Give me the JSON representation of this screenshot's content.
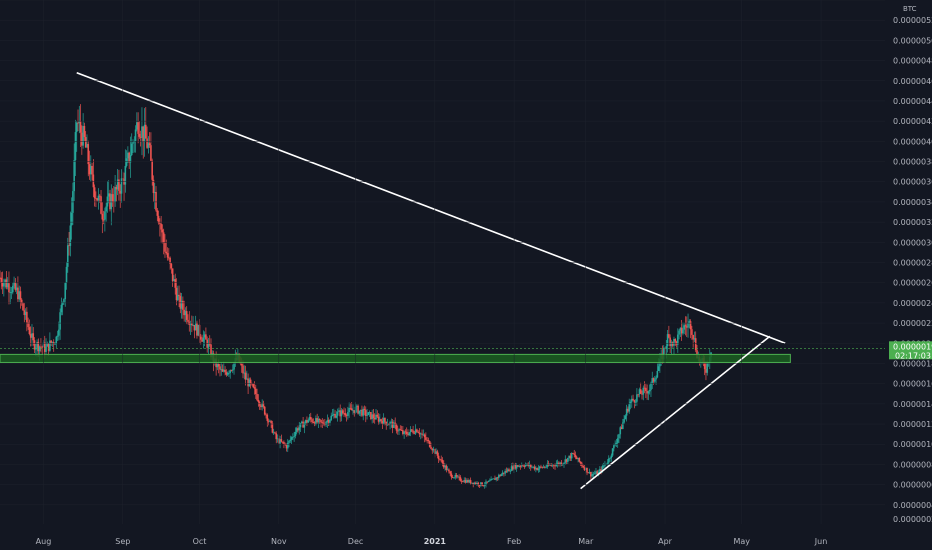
{
  "chart_data": {
    "type": "candlestick",
    "title": "",
    "unit": "BTC",
    "ylim": [
      2.1e-07,
      5.4e-06
    ],
    "y_ticks": [
      "0.00000040",
      "0.00000060",
      "0.00000080",
      "0.00000100",
      "0.00000120",
      "0.00000140",
      "0.00000160",
      "0.00000180",
      "0.00000200",
      "0.00000220",
      "0.00000240",
      "0.00000260",
      "0.00000280",
      "0.00000300",
      "0.00000320",
      "0.00000340",
      "0.00000360",
      "0.00000380",
      "0.00000400",
      "0.00000420",
      "0.00000440",
      "0.00000460",
      "0.00000480",
      "0.00000500",
      "0.00000520",
      "0.00000540"
    ],
    "y_bottom_label": "0.00000021",
    "x_ticks": [
      {
        "label": "Aug",
        "date": "2020-08-01"
      },
      {
        "label": "Sep",
        "date": "2020-09-01"
      },
      {
        "label": "Oct",
        "date": "2020-10-01"
      },
      {
        "label": "Nov",
        "date": "2020-11-01"
      },
      {
        "label": "Dec",
        "date": "2020-12-01"
      },
      {
        "label": "2021",
        "date": "2021-01-01",
        "bold": true
      },
      {
        "label": "Feb",
        "date": "2021-02-01"
      },
      {
        "label": "Mar",
        "date": "2021-03-01"
      },
      {
        "label": "Apr",
        "date": "2021-04-01"
      },
      {
        "label": "May",
        "date": "2021-05-01"
      },
      {
        "label": "Jun",
        "date": "2021-06-01"
      }
    ],
    "x_range": [
      "2020-07-15",
      "2021-06-26"
    ],
    "series": [
      {
        "keypoints": [
          [
            "2020-07-15",
            2.65e-06
          ],
          [
            "2020-07-22",
            2.5e-06
          ],
          [
            "2020-07-28",
            2e-06
          ],
          [
            "2020-08-02",
            1.95e-06
          ],
          [
            "2020-08-06",
            2.05e-06
          ],
          [
            "2020-08-09",
            2.5e-06
          ],
          [
            "2020-08-12",
            3.3e-06
          ],
          [
            "2020-08-14",
            4.2e-06
          ],
          [
            "2020-08-17",
            4e-06
          ],
          [
            "2020-08-20",
            3.6e-06
          ],
          [
            "2020-08-24",
            3.3e-06
          ],
          [
            "2020-08-28",
            3.45e-06
          ],
          [
            "2020-09-01",
            3.6e-06
          ],
          [
            "2020-09-04",
            3.9e-06
          ],
          [
            "2020-09-07",
            4.2e-06
          ],
          [
            "2020-09-11",
            3.95e-06
          ],
          [
            "2020-09-14",
            3.4e-06
          ],
          [
            "2020-09-17",
            3e-06
          ],
          [
            "2020-09-20",
            2.7e-06
          ],
          [
            "2020-09-23",
            2.4e-06
          ],
          [
            "2020-09-27",
            2.25e-06
          ],
          [
            "2020-10-01",
            2.1e-06
          ],
          [
            "2020-10-04",
            2e-06
          ],
          [
            "2020-10-07",
            1.8e-06
          ],
          [
            "2020-10-10",
            1.7e-06
          ],
          [
            "2020-10-13",
            1.75e-06
          ],
          [
            "2020-10-16",
            1.85e-06
          ],
          [
            "2020-10-19",
            1.65e-06
          ],
          [
            "2020-10-23",
            1.5e-06
          ],
          [
            "2020-10-27",
            1.3e-06
          ],
          [
            "2020-10-31",
            1.05e-06
          ],
          [
            "2020-11-04",
            9.8e-07
          ],
          [
            "2020-11-08",
            1.15e-06
          ],
          [
            "2020-11-13",
            1.25e-06
          ],
          [
            "2020-11-18",
            1.2e-06
          ],
          [
            "2020-11-23",
            1.3e-06
          ],
          [
            "2020-11-28",
            1.32e-06
          ],
          [
            "2020-12-01",
            1.35e-06
          ],
          [
            "2020-12-05",
            1.3e-06
          ],
          [
            "2020-12-10",
            1.25e-06
          ],
          [
            "2020-12-15",
            1.2e-06
          ],
          [
            "2020-12-20",
            1.1e-06
          ],
          [
            "2020-12-25",
            1.15e-06
          ],
          [
            "2020-12-30",
            1e-06
          ],
          [
            "2021-01-03",
            8.5e-07
          ],
          [
            "2021-01-07",
            7e-07
          ],
          [
            "2021-01-11",
            6.5e-07
          ],
          [
            "2021-01-16",
            6.2e-07
          ],
          [
            "2021-01-20",
            6e-07
          ],
          [
            "2021-01-24",
            6.5e-07
          ],
          [
            "2021-01-28",
            7.2e-07
          ],
          [
            "2021-02-01",
            7.8e-07
          ],
          [
            "2021-02-05",
            8e-07
          ],
          [
            "2021-02-10",
            7.6e-07
          ],
          [
            "2021-02-15",
            7.9e-07
          ],
          [
            "2021-02-20",
            8.2e-07
          ],
          [
            "2021-02-24",
            9e-07
          ],
          [
            "2021-02-28",
            7.8e-07
          ],
          [
            "2021-03-03",
            7e-07
          ],
          [
            "2021-03-06",
            7.2e-07
          ],
          [
            "2021-03-10",
            8.5e-07
          ],
          [
            "2021-03-14",
            1.1e-06
          ],
          [
            "2021-03-18",
            1.4e-06
          ],
          [
            "2021-03-22",
            1.5e-06
          ],
          [
            "2021-03-26",
            1.55e-06
          ],
          [
            "2021-03-30",
            1.8e-06
          ],
          [
            "2021-04-02",
            2.05e-06
          ],
          [
            "2021-04-05",
            2e-06
          ],
          [
            "2021-04-08",
            2.15e-06
          ],
          [
            "2021-04-11",
            2.2e-06
          ],
          [
            "2021-04-14",
            1.85e-06
          ],
          [
            "2021-04-17",
            1.75e-06
          ],
          [
            "2021-04-19",
            1.95e-06
          ]
        ]
      }
    ],
    "trendlines": [
      {
        "name": "upper-resistance",
        "from": [
          "2020-08-14",
          4.68e-06
        ],
        "to": [
          "2021-05-18",
          2e-06
        ]
      },
      {
        "name": "lower-support",
        "from": [
          "2021-02-27",
          5.6e-07
        ],
        "to": [
          "2021-05-12",
          2.07e-06
        ]
      }
    ],
    "support_zone": {
      "from": "2020-07-15",
      "to": "2021-05-20",
      "y_low": 1.81e-06,
      "y_high": 1.89e-06
    },
    "last_price": {
      "value": "0.00000195",
      "countdown": "02:17:03",
      "y": 1.95e-06
    }
  },
  "colors": {
    "background": "#131722",
    "up": "#26a69a",
    "down": "#ef5350",
    "grid": "#1e222d",
    "zone_fill": "#1b5e20",
    "zone_border": "#4caf50",
    "trendline": "#ffffff",
    "price_tag": "#4caf50"
  }
}
